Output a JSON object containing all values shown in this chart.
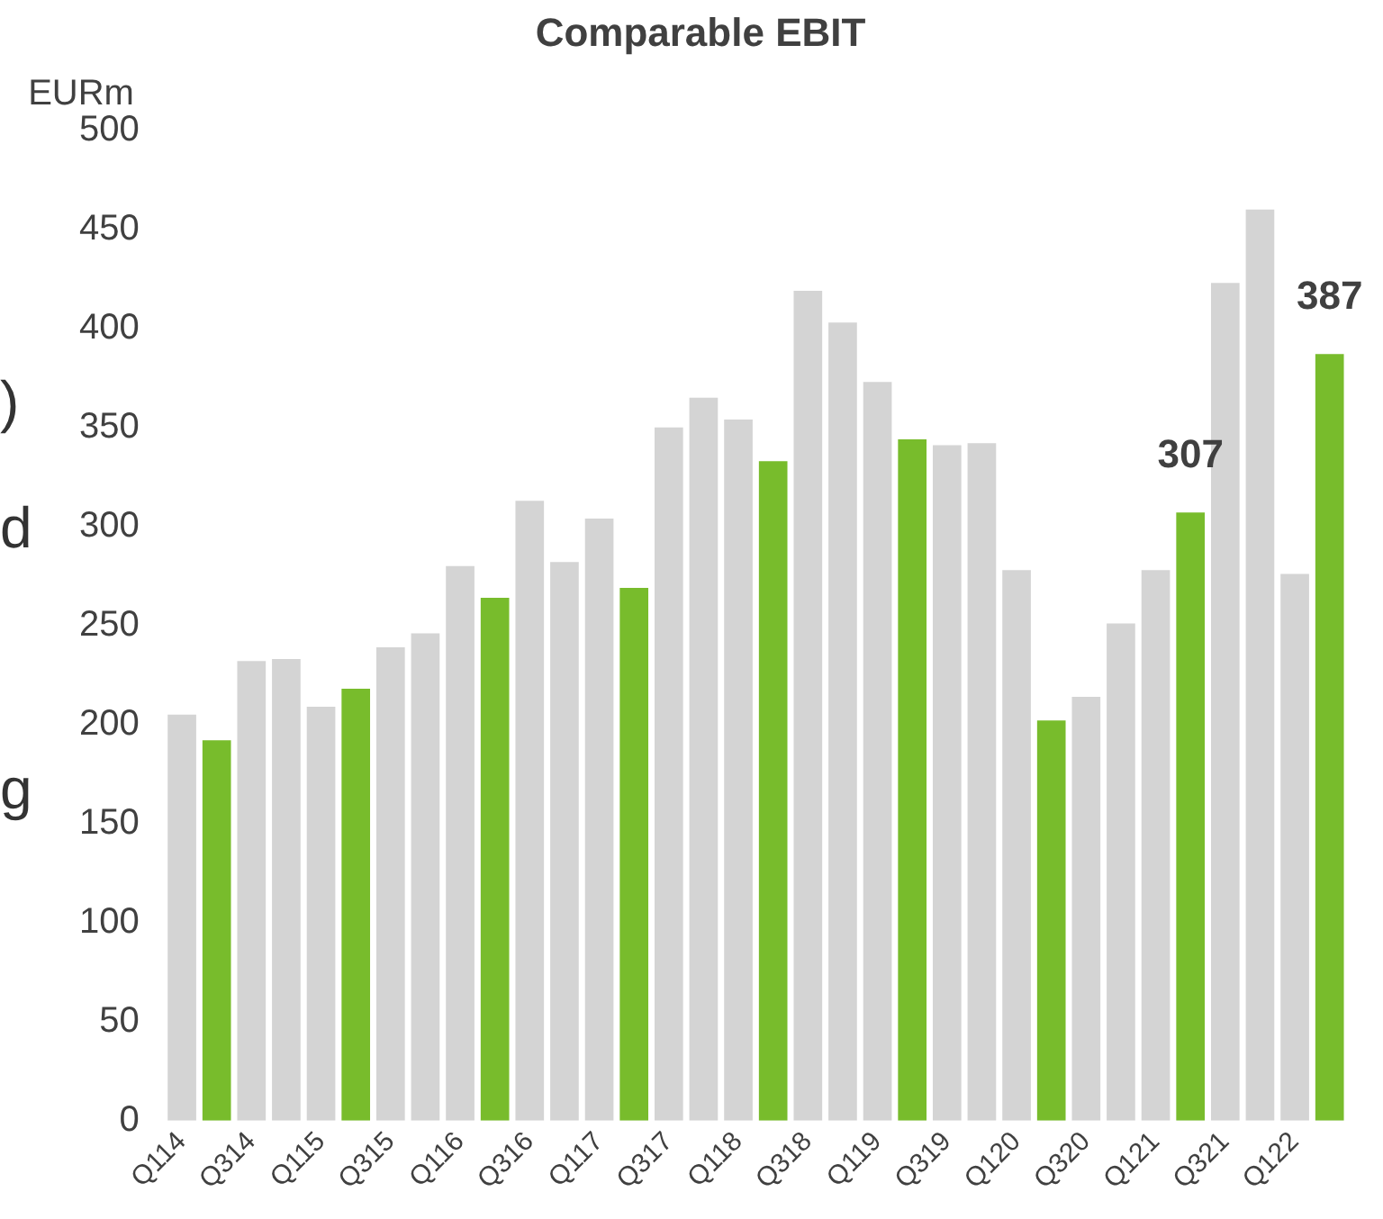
{
  "chart_data": {
    "type": "bar",
    "title": "Comparable EBIT",
    "ylabel": "EURm",
    "categories": [
      "Q114",
      null,
      "Q314",
      null,
      "Q115",
      null,
      "Q315",
      null,
      "Q116",
      null,
      "Q316",
      null,
      "Q117",
      null,
      "Q317",
      null,
      "Q118",
      null,
      "Q318",
      null,
      "Q119",
      null,
      "Q319",
      null,
      "Q120",
      null,
      "Q320",
      null,
      "Q121",
      null,
      "Q321",
      null,
      "Q122",
      null
    ],
    "values": [
      205,
      192,
      232,
      233,
      209,
      218,
      239,
      246,
      280,
      264,
      313,
      282,
      304,
      269,
      350,
      365,
      354,
      333,
      419,
      403,
      373,
      344,
      341,
      342,
      278,
      202,
      214,
      251,
      278,
      307,
      423,
      460,
      276,
      387
    ],
    "colors": [
      "#d4d4d4",
      "#78bc2c",
      "#d4d4d4",
      "#d4d4d4",
      "#d4d4d4",
      "#78bc2c",
      "#d4d4d4",
      "#d4d4d4",
      "#d4d4d4",
      "#78bc2c",
      "#d4d4d4",
      "#d4d4d4",
      "#d4d4d4",
      "#78bc2c",
      "#d4d4d4",
      "#d4d4d4",
      "#d4d4d4",
      "#78bc2c",
      "#d4d4d4",
      "#d4d4d4",
      "#d4d4d4",
      "#78bc2c",
      "#d4d4d4",
      "#d4d4d4",
      "#d4d4d4",
      "#78bc2c",
      "#d4d4d4",
      "#d4d4d4",
      "#d4d4d4",
      "#78bc2c",
      "#d4d4d4",
      "#d4d4d4",
      "#d4d4d4",
      "#78bc2c"
    ],
    "value_labels": [
      null,
      null,
      null,
      null,
      null,
      null,
      null,
      null,
      null,
      null,
      null,
      null,
      null,
      null,
      null,
      null,
      null,
      null,
      null,
      null,
      null,
      null,
      null,
      null,
      null,
      null,
      null,
      null,
      null,
      "307",
      null,
      null,
      null,
      "387"
    ],
    "ylim": [
      0,
      500
    ],
    "yticks": [
      0,
      50,
      100,
      150,
      200,
      250,
      300,
      350,
      400,
      450,
      500
    ],
    "grid": false,
    "legend": false,
    "annotations": [
      ")",
      "d",
      "g"
    ]
  }
}
